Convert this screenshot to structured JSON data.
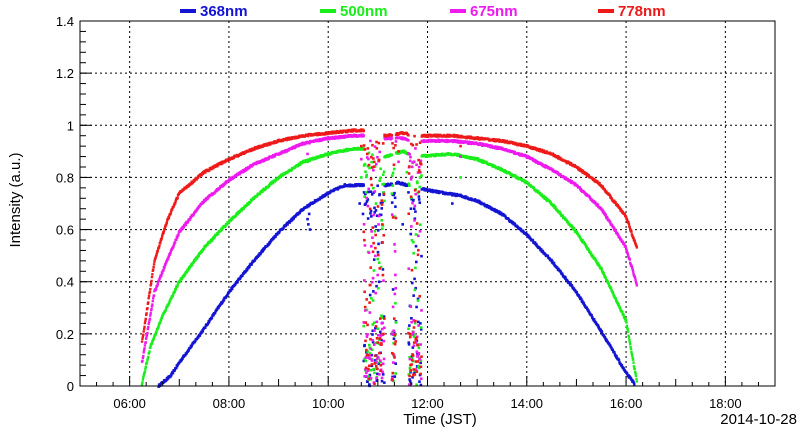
{
  "chart_data": {
    "type": "scatter",
    "xlabel": "Time (JST)",
    "ylabel": "Intensity (a.u.)",
    "date_label": "2014-10-28",
    "xlim": [
      "05:00",
      "19:00"
    ],
    "ylim": [
      0,
      1.4
    ],
    "x_ticks": [
      "06:00",
      "08:00",
      "10:00",
      "12:00",
      "14:00",
      "16:00",
      "18:00"
    ],
    "y_ticks": [
      "0",
      "0.2",
      "0.4",
      "0.6",
      "0.8",
      "1",
      "1.2",
      "1.4"
    ],
    "grid": true,
    "legend_position": "top",
    "series": [
      {
        "name": "368nm",
        "color": "#1414d2",
        "points": [
          [
            "06:35",
            0.0
          ],
          [
            "06:50",
            0.04
          ],
          [
            "07:00",
            0.09
          ],
          [
            "07:30",
            0.22
          ],
          [
            "08:00",
            0.36
          ],
          [
            "08:30",
            0.48
          ],
          [
            "09:00",
            0.59
          ],
          [
            "09:30",
            0.68
          ],
          [
            "10:00",
            0.74
          ],
          [
            "10:20",
            0.77
          ],
          [
            "10:35",
            0.77
          ],
          [
            "11:10",
            0.77
          ],
          [
            "11:25",
            0.78
          ],
          [
            "11:45",
            0.76
          ],
          [
            "12:20",
            0.74
          ],
          [
            "12:40",
            0.73
          ],
          [
            "13:00",
            0.71
          ],
          [
            "13:30",
            0.66
          ],
          [
            "14:00",
            0.58
          ],
          [
            "14:30",
            0.48
          ],
          [
            "15:00",
            0.36
          ],
          [
            "15:30",
            0.21
          ],
          [
            "16:00",
            0.05
          ],
          [
            "16:10",
            0.01
          ]
        ],
        "scatter": [
          [
            "09:35",
            0.64
          ],
          [
            "09:36",
            0.62
          ],
          [
            "09:37",
            0.66
          ],
          [
            "09:38",
            0.6
          ],
          [
            "10:38",
            0.7
          ],
          [
            "10:42",
            0.66
          ],
          [
            "11:05",
            0.55
          ],
          [
            "11:30",
            0.62
          ],
          [
            "11:40",
            0.68
          ],
          [
            "12:30",
            0.7
          ]
        ]
      },
      {
        "name": "500nm",
        "color": "#1aee1a",
        "points": [
          [
            "06:15",
            0.01
          ],
          [
            "06:25",
            0.15
          ],
          [
            "06:40",
            0.27
          ],
          [
            "07:00",
            0.4
          ],
          [
            "07:30",
            0.53
          ],
          [
            "08:00",
            0.63
          ],
          [
            "08:30",
            0.72
          ],
          [
            "09:00",
            0.8
          ],
          [
            "09:30",
            0.86
          ],
          [
            "10:00",
            0.89
          ],
          [
            "10:30",
            0.91
          ],
          [
            "10:42",
            0.91
          ],
          [
            "11:10",
            0.88
          ],
          [
            "11:30",
            0.9
          ],
          [
            "11:45",
            0.88
          ],
          [
            "12:30",
            0.89
          ],
          [
            "13:00",
            0.87
          ],
          [
            "13:30",
            0.83
          ],
          [
            "14:00",
            0.78
          ],
          [
            "14:30",
            0.7
          ],
          [
            "15:00",
            0.59
          ],
          [
            "15:30",
            0.45
          ],
          [
            "16:00",
            0.25
          ],
          [
            "16:10",
            0.07
          ],
          [
            "16:13",
            0.02
          ]
        ],
        "scatter": [
          [
            "09:35",
            0.86
          ],
          [
            "10:40",
            0.8
          ],
          [
            "11:35",
            0.82
          ],
          [
            "12:40",
            0.8
          ]
        ]
      },
      {
        "name": "675nm",
        "color": "#ee1aee",
        "points": [
          [
            "06:15",
            0.09
          ],
          [
            "06:20",
            0.18
          ],
          [
            "06:30",
            0.36
          ],
          [
            "06:45",
            0.48
          ],
          [
            "07:00",
            0.59
          ],
          [
            "07:30",
            0.71
          ],
          [
            "08:00",
            0.79
          ],
          [
            "08:30",
            0.85
          ],
          [
            "09:00",
            0.89
          ],
          [
            "09:30",
            0.93
          ],
          [
            "10:00",
            0.95
          ],
          [
            "10:30",
            0.96
          ],
          [
            "10:42",
            0.96
          ],
          [
            "11:10",
            0.95
          ],
          [
            "11:30",
            0.95
          ],
          [
            "11:45",
            0.94
          ],
          [
            "12:30",
            0.94
          ],
          [
            "13:00",
            0.93
          ],
          [
            "13:30",
            0.91
          ],
          [
            "14:00",
            0.88
          ],
          [
            "14:30",
            0.83
          ],
          [
            "15:00",
            0.77
          ],
          [
            "15:30",
            0.68
          ],
          [
            "16:00",
            0.53
          ],
          [
            "16:13",
            0.39
          ]
        ],
        "scatter": [
          [
            "09:35",
            0.89
          ],
          [
            "10:40",
            0.87
          ],
          [
            "11:25",
            0.86
          ],
          [
            "12:40",
            0.88
          ]
        ]
      },
      {
        "name": "778nm",
        "color": "#ee1a1a",
        "points": [
          [
            "06:15",
            0.17
          ],
          [
            "06:20",
            0.27
          ],
          [
            "06:30",
            0.48
          ],
          [
            "06:45",
            0.63
          ],
          [
            "07:00",
            0.74
          ],
          [
            "07:30",
            0.82
          ],
          [
            "08:00",
            0.87
          ],
          [
            "08:30",
            0.91
          ],
          [
            "09:00",
            0.94
          ],
          [
            "09:30",
            0.96
          ],
          [
            "10:00",
            0.97
          ],
          [
            "10:30",
            0.98
          ],
          [
            "10:42",
            0.98
          ],
          [
            "11:10",
            0.96
          ],
          [
            "11:30",
            0.97
          ],
          [
            "11:45",
            0.96
          ],
          [
            "12:30",
            0.96
          ],
          [
            "13:00",
            0.95
          ],
          [
            "13:30",
            0.94
          ],
          [
            "14:00",
            0.92
          ],
          [
            "14:30",
            0.89
          ],
          [
            "15:00",
            0.84
          ],
          [
            "15:30",
            0.77
          ],
          [
            "16:00",
            0.65
          ],
          [
            "16:13",
            0.53
          ]
        ],
        "scatter": [
          [
            "10:40",
            0.92
          ],
          [
            "11:25",
            0.9
          ],
          [
            "12:40",
            0.92
          ]
        ]
      }
    ],
    "cloud_gap": {
      "ranges": [
        [
          "10:43",
          "11:08"
        ],
        [
          "11:17",
          "11:22"
        ],
        [
          "11:37",
          "11:53"
        ]
      ],
      "note_levels": [
        0.0,
        0.95
      ]
    }
  }
}
